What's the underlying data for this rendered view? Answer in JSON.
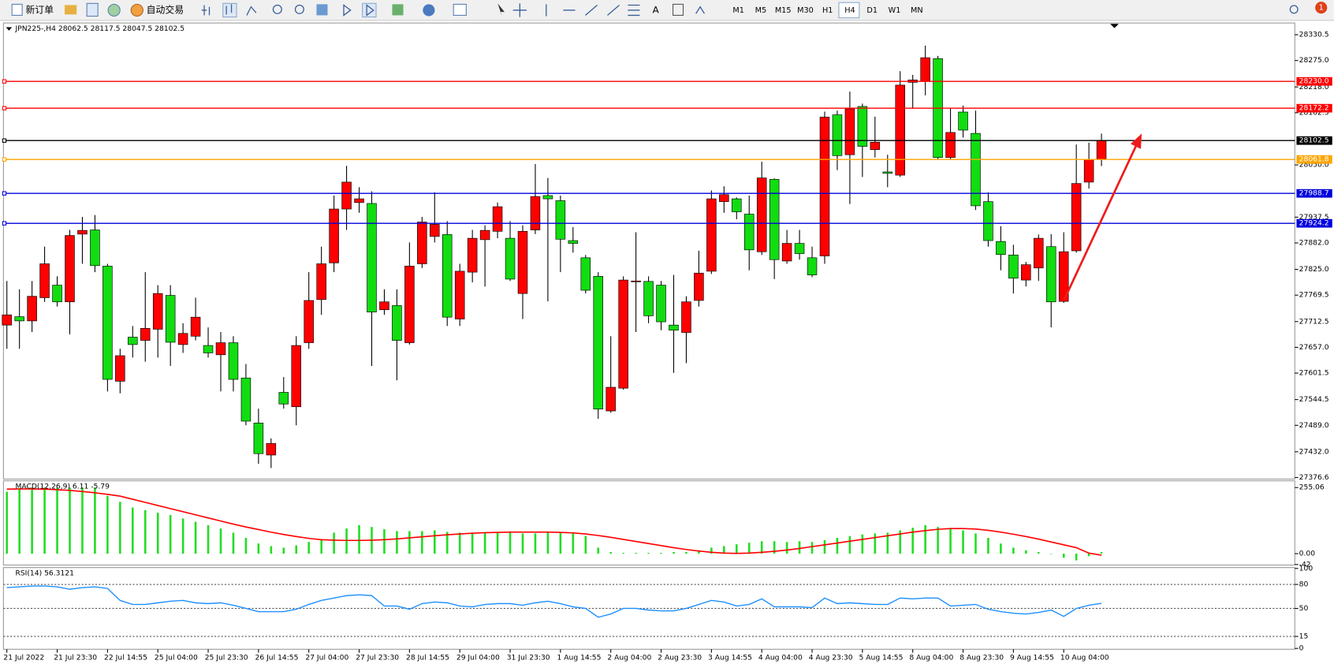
{
  "toolbar": {
    "buttons": [
      "新订单",
      "自动交易"
    ],
    "text_tool": "A",
    "timeframes": [
      "M1",
      "M5",
      "M15",
      "M30",
      "H1",
      "H4",
      "D1",
      "W1",
      "MN"
    ],
    "notification_count": "1"
  },
  "chart_data": [
    {
      "type": "candlestick",
      "title": "JPN225-,H4  28062.5 28117.5 28047.5 28102.5",
      "categories": [
        "21 Jul 2022",
        null,
        null,
        null,
        "21 Jul 23:30",
        null,
        null,
        null,
        "22 Jul 14:55",
        null,
        null,
        null,
        "25 Jul 04:00",
        null,
        null,
        null,
        "25 Jul 23:30",
        null,
        null,
        null,
        "26 Jul 14:55",
        null,
        null,
        null,
        "27 Jul 04:00",
        null,
        null,
        null,
        "27 Jul 23:30",
        null,
        null,
        null,
        "28 Jul 14:55",
        null,
        null,
        null,
        "29 Jul 04:00",
        null,
        null,
        null,
        "31 Jul 23:30",
        null,
        null,
        null,
        "1 Aug 14:55",
        null,
        null,
        null,
        "2 Aug 04:00",
        null,
        null,
        null,
        "2 Aug 23:30",
        null,
        null,
        null,
        "3 Aug 14:55",
        null,
        null,
        null,
        "4 Aug 04:00",
        null,
        null,
        null,
        "4 Aug 23:30",
        null,
        null,
        null,
        "5 Aug 14:55",
        null,
        null,
        null,
        "8 Aug 04:00",
        null,
        null,
        null,
        "8 Aug 23:30",
        null,
        null,
        null,
        "9 Aug 14:55",
        null,
        null,
        null,
        "10 Aug 04:00",
        null,
        null,
        null
      ],
      "open": [
        27705,
        27723,
        27714,
        27764,
        27791,
        27755,
        27901,
        27910,
        27832,
        27584,
        27679,
        27672,
        27696,
        27769,
        27663,
        27681,
        27661,
        27641,
        27667,
        27591,
        27494,
        27425,
        27560,
        27529,
        27667,
        27760,
        27839,
        27955,
        27969,
        27967,
        27738,
        27747,
        27667,
        27837,
        27896,
        27900,
        27718,
        27819,
        27889,
        27907,
        27892,
        27773,
        27910,
        27984,
        27973,
        27887,
        27850,
        27810,
        27520,
        27569,
        27799,
        27799,
        27791,
        27705,
        27689,
        27758,
        27821,
        27971,
        27977,
        27944,
        27863,
        28019,
        27843,
        27881,
        27850,
        27854,
        28158,
        28072,
        28176,
        28083,
        28035,
        28028,
        28228,
        28230,
        28279,
        28066,
        28164,
        28118,
        27971,
        27885,
        27856,
        27802,
        27828,
        27874,
        27756,
        27865,
        28013,
        28062.5
      ],
      "high": [
        27800,
        27782,
        27800,
        27874,
        27810,
        27910,
        27938,
        27942,
        27837,
        27654,
        27703,
        27819,
        27791,
        27791,
        27709,
        27764,
        27700,
        27690,
        27681,
        27621,
        27525,
        27461,
        27593,
        27681,
        27819,
        27874,
        27984,
        28048,
        28002,
        27993,
        27782,
        27782,
        27883,
        27938,
        27991,
        27929,
        27837,
        27910,
        27920,
        27969,
        27929,
        27920,
        28052,
        28022,
        27984,
        27916,
        27856,
        27819,
        27681,
        27810,
        27905,
        27810,
        27800,
        27813,
        27767,
        27865,
        27995,
        28004,
        27980,
        27984,
        28057,
        28021,
        27910,
        27910,
        27874,
        28165,
        28167,
        28208,
        28182,
        28154,
        28072,
        28252,
        28244,
        28307,
        28285,
        28173,
        28178,
        28167,
        27991,
        27918,
        27878,
        27841,
        27900,
        27901,
        27905,
        28094,
        28098,
        28117.5
      ],
      "low": [
        27654,
        27654,
        27690,
        27755,
        27745,
        27685,
        27837,
        27819,
        27562,
        27558,
        27635,
        27626,
        27635,
        27617,
        27645,
        27672,
        27635,
        27562,
        27562,
        27489,
        27406,
        27397,
        27525,
        27489,
        27654,
        27727,
        27819,
        27910,
        27947,
        27617,
        27727,
        27586,
        27663,
        27828,
        27883,
        27703,
        27703,
        27797,
        27788,
        27892,
        27800,
        27718,
        27901,
        27756,
        27819,
        27861,
        27773,
        27503,
        27516,
        27566,
        27690,
        27709,
        27694,
        27602,
        27623,
        27745,
        27815,
        27947,
        27933,
        27823,
        27856,
        27804,
        27837,
        27846,
        27808,
        27837,
        28039,
        27966,
        28024,
        28066,
        28002,
        28024,
        28171,
        28200,
        28061,
        28061,
        28109,
        27953,
        27874,
        27823,
        27773,
        27788,
        27800,
        27700,
        27753,
        27861,
        27999,
        28047.5
      ],
      "close": [
        27727,
        27714,
        27767,
        27837,
        27755,
        27898,
        27909,
        27833,
        27588,
        27639,
        27663,
        27698,
        27773,
        27668,
        27687,
        27722,
        27645,
        27667,
        27588,
        27498,
        27428,
        27450,
        27535,
        27661,
        27758,
        27837,
        27955,
        28013,
        27977,
        27733,
        27755,
        27672,
        27832,
        27927,
        27922,
        27722,
        27821,
        27892,
        27909,
        27960,
        27804,
        27907,
        27982,
        27977,
        27890,
        27881,
        27780,
        27524,
        27571,
        27802,
        27800,
        27725,
        27712,
        27694,
        27755,
        27817,
        27977,
        27986,
        27949,
        27867,
        28022,
        27846,
        27881,
        27859,
        27813,
        28153,
        28070,
        28171,
        28090,
        28099,
        28032,
        28222,
        28233,
        28281,
        28066,
        28120,
        28125,
        27962,
        27887,
        27857,
        27806,
        27835,
        27892,
        27755,
        27863,
        28010,
        28062,
        28102.5
      ],
      "up_color": "#ff0000",
      "down_color": "#11dd11",
      "wick_color": "#000000",
      "ylim": [
        27375,
        28354
      ],
      "yticks": [
        28330.5,
        {
          "value": 28275,
          "label": "28275.0"
        },
        {
          "value": 28218,
          "label": "28218.0"
        },
        28162.5,
        {
          "value": 28050,
          "label": "28050.0"
        },
        27937.5,
        {
          "value": 27882,
          "label": "27882.0"
        },
        {
          "value": 27825,
          "label": "27825.0"
        },
        27769.5,
        27712.5,
        {
          "value": 27657,
          "label": "27657.0"
        },
        27601.5,
        27544.5,
        {
          "value": 27489,
          "label": "27489.0"
        },
        {
          "value": 27432,
          "label": "27432.0"
        },
        27376.6
      ],
      "levels": [
        {
          "value": 28230,
          "label": "28230.0",
          "color": "#ff0000"
        },
        {
          "value": 28172.2,
          "color": "#ff0000"
        },
        {
          "value": 28102.5,
          "color": "#000000"
        },
        {
          "value": 28061.8,
          "color": "#ffa500"
        },
        {
          "value": 27988.7,
          "color": "#0000dd"
        },
        {
          "value": 27924.2,
          "color": "#0000dd"
        }
      ]
    },
    {
      "type": "macd",
      "title": "MACD(12,26,9) 6.11 -5.79",
      "values": [
        239,
        249,
        255,
        255,
        255,
        255,
        255,
        255,
        223,
        200,
        178,
        168,
        158,
        149,
        136,
        123,
        110,
        97,
        81,
        61,
        39,
        29,
        23,
        32,
        45,
        55,
        81,
        97,
        110,
        103,
        94,
        87,
        87,
        87,
        90,
        84,
        81,
        81,
        81,
        84,
        81,
        78,
        78,
        81,
        81,
        78,
        68,
        23,
        6,
        3,
        3,
        3,
        3,
        6,
        6,
        13,
        23,
        29,
        36,
        42,
        48,
        48,
        45,
        48,
        45,
        52,
        61,
        68,
        74,
        78,
        81,
        90,
        100,
        110,
        103,
        97,
        90,
        78,
        61,
        39,
        23,
        13,
        6,
        0,
        -16,
        -26,
        -10,
        6
      ],
      "signal": [
        249,
        250,
        250,
        249,
        247,
        244,
        240,
        235,
        229,
        222,
        210,
        198,
        186,
        174,
        162,
        150,
        138,
        126,
        114,
        103,
        93,
        83,
        74,
        66,
        59,
        54,
        52,
        51,
        51,
        52,
        54,
        57,
        61,
        65,
        69,
        73,
        76,
        79,
        81,
        82,
        83,
        83,
        83,
        83,
        82,
        80,
        76,
        70,
        63,
        55,
        47,
        39,
        31,
        23,
        16,
        10,
        5,
        2,
        1,
        2,
        5,
        9,
        14,
        20,
        27,
        34,
        41,
        48,
        55,
        62,
        69,
        76,
        83,
        89,
        94,
        97,
        97,
        95,
        90,
        83,
        75,
        66,
        56,
        45,
        34,
        23,
        2,
        -6
      ],
      "color": "#22dd22",
      "signal_color": "#ff0000",
      "ylim": [
        -44,
        278
      ],
      "yticks": [
        255.06,
        {
          "value": 0,
          "label": "0.00"
        },
        -42
      ]
    },
    {
      "type": "line",
      "title": "RSI(14) 56.3121",
      "values": [
        76,
        77,
        78,
        78,
        77,
        74,
        76,
        77,
        75,
        60,
        55,
        55,
        57,
        59,
        60,
        57,
        56,
        57,
        54,
        50,
        46,
        46,
        46,
        49,
        55,
        60,
        63,
        66,
        67,
        66,
        53,
        53,
        49,
        56,
        58,
        57,
        53,
        52,
        55,
        56,
        56,
        54,
        57,
        59,
        56,
        52,
        50,
        39,
        43,
        50,
        50,
        48,
        47,
        47,
        50,
        55,
        60,
        58,
        53,
        55,
        62,
        52,
        52,
        52,
        51,
        63,
        56,
        57,
        56,
        55,
        55,
        63,
        62,
        63,
        63,
        53,
        54,
        55,
        49,
        46,
        44,
        43,
        45,
        48,
        40,
        50,
        54,
        56.3121
      ],
      "color": "#1e90ff",
      "ylim": [
        0,
        100
      ],
      "yticks": [
        100,
        80,
        50,
        15,
        0
      ],
      "levels": [
        80,
        50,
        15
      ]
    }
  ]
}
